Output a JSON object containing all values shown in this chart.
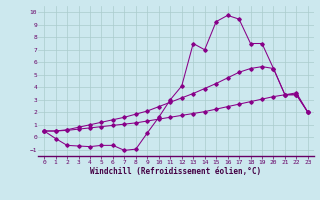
{
  "xlabel": "Windchill (Refroidissement éolien,°C)",
  "background_color": "#cce8ee",
  "grid_color": "#aacccc",
  "line_color": "#880088",
  "xlim": [
    -0.5,
    23.5
  ],
  "ylim": [
    -1.5,
    10.5
  ],
  "xticks": [
    0,
    1,
    2,
    3,
    4,
    5,
    6,
    7,
    8,
    9,
    10,
    11,
    12,
    13,
    14,
    15,
    16,
    17,
    18,
    19,
    20,
    21,
    22,
    23
  ],
  "yticks": [
    -1,
    0,
    1,
    2,
    3,
    4,
    5,
    6,
    7,
    8,
    9,
    10
  ],
  "line1_x": [
    0,
    1,
    2,
    3,
    4,
    5,
    6,
    7,
    8,
    9,
    10,
    11,
    12,
    13,
    14,
    15,
    16,
    17,
    18,
    19,
    20,
    21,
    22,
    23
  ],
  "line1_y": [
    0.5,
    0.5,
    0.55,
    0.65,
    0.75,
    0.85,
    0.95,
    1.05,
    1.15,
    1.3,
    1.45,
    1.6,
    1.75,
    1.9,
    2.05,
    2.25,
    2.45,
    2.65,
    2.85,
    3.05,
    3.25,
    3.4,
    3.55,
    2.0
  ],
  "line2_x": [
    0,
    1,
    2,
    3,
    4,
    5,
    6,
    7,
    8,
    9,
    10,
    11,
    12,
    13,
    14,
    15,
    16,
    17,
    18,
    19,
    20,
    21,
    22,
    23
  ],
  "line2_y": [
    0.5,
    0.5,
    0.6,
    0.8,
    1.0,
    1.2,
    1.4,
    1.6,
    1.85,
    2.1,
    2.45,
    2.8,
    3.15,
    3.5,
    3.9,
    4.3,
    4.75,
    5.2,
    5.5,
    5.65,
    5.5,
    3.4,
    3.4,
    2.0
  ],
  "line3_x": [
    0,
    1,
    2,
    3,
    4,
    5,
    6,
    7,
    8,
    9,
    10,
    11,
    12,
    13,
    14,
    15,
    16,
    17,
    18,
    19,
    20,
    21,
    22,
    23
  ],
  "line3_y": [
    0.5,
    -0.1,
    -0.65,
    -0.7,
    -0.75,
    -0.65,
    -0.65,
    -1.05,
    -0.95,
    0.35,
    1.6,
    3.0,
    4.1,
    7.5,
    7.0,
    9.25,
    9.75,
    9.45,
    7.5,
    7.5,
    5.5,
    3.4,
    3.4,
    2.0
  ]
}
